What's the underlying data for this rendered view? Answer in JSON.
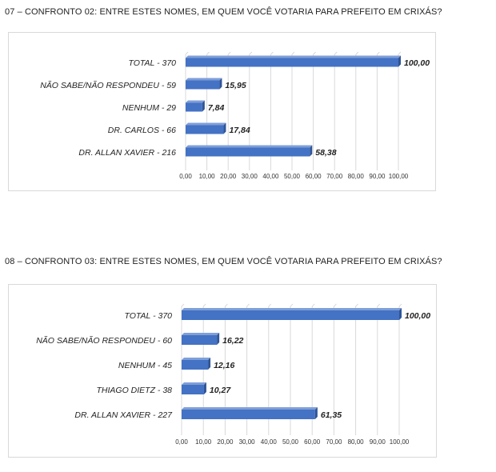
{
  "charts": {
    "heading1": "07 – CONFRONTO 02: ENTRE ESTES NOMES, EM QUEM VOCÊ VOTARIA PARA PREFEITO EM CRIXÁS?",
    "heading2": "08 – CONFRONTO 03: ENTRE ESTES NOMES, EM QUEM VOCÊ VOTARIA PARA PREFEITO EM CRIXÁS?"
  },
  "colors": {
    "bar": "#4472c4",
    "bar_dark": "#2f5597",
    "bar_top": "#7f9fd8",
    "grid": "#d9d9d9"
  },
  "chart_data": [
    {
      "type": "bar",
      "orientation": "horizontal",
      "title": "07 – CONFRONTO 02: ENTRE ESTES NOMES, EM QUEM VOCÊ VOTARIA PARA PREFEITO EM CRIXÁS?",
      "categories": [
        "TOTAL - 370",
        "NÃO SABE/NÃO RESPONDEU - 59",
        "NENHUM - 29",
        "DR. CARLOS - 66",
        "DR. ALLAN XAVIER - 216"
      ],
      "values": [
        100.0,
        15.95,
        7.84,
        17.84,
        58.38
      ],
      "value_labels": [
        "100,00",
        "15,95",
        "7,84",
        "17,84",
        "58,38"
      ],
      "xlim": [
        0,
        100
      ],
      "x_ticks": [
        "0,00",
        "10,00",
        "20,00",
        "30,00",
        "40,00",
        "50,00",
        "60,00",
        "70,00",
        "80,00",
        "90,00",
        "100,00"
      ],
      "grid": true
    },
    {
      "type": "bar",
      "orientation": "horizontal",
      "title": "08 – CONFRONTO 03: ENTRE ESTES NOMES, EM QUEM VOCÊ VOTARIA PARA PREFEITO EM CRIXÁS?",
      "categories": [
        "TOTAL - 370",
        "NÃO SABE/NÃO RESPONDEU - 60",
        "NENHUM - 45",
        "THIAGO DIETZ - 38",
        "DR. ALLAN XAVIER - 227"
      ],
      "values": [
        100.0,
        16.22,
        12.16,
        10.27,
        61.35
      ],
      "value_labels": [
        "100,00",
        "16,22",
        "12,16",
        "10,27",
        "61,35"
      ],
      "xlim": [
        0,
        100
      ],
      "x_ticks": [
        "0,00",
        "10,00",
        "20,00",
        "30,00",
        "40,00",
        "50,00",
        "60,00",
        "70,00",
        "80,00",
        "90,00",
        "100,00"
      ],
      "grid": true
    }
  ]
}
